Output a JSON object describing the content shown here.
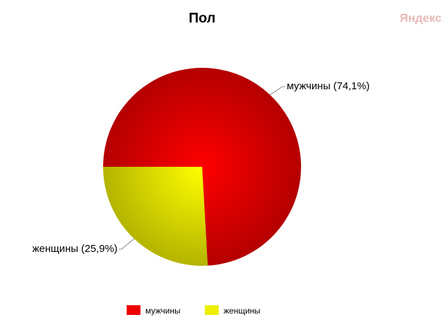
{
  "watermark": "Яндекс",
  "chart_data": {
    "type": "pie",
    "title": "Пол",
    "categories": [
      "мужчины",
      "женщины"
    ],
    "values": [
      74.1,
      25.9
    ],
    "value_labels": [
      "мужчины (74,1%)",
      "женщины (25,9%)"
    ],
    "colors": [
      "#ee0000",
      "#eeee00"
    ],
    "legend": "bottom"
  }
}
